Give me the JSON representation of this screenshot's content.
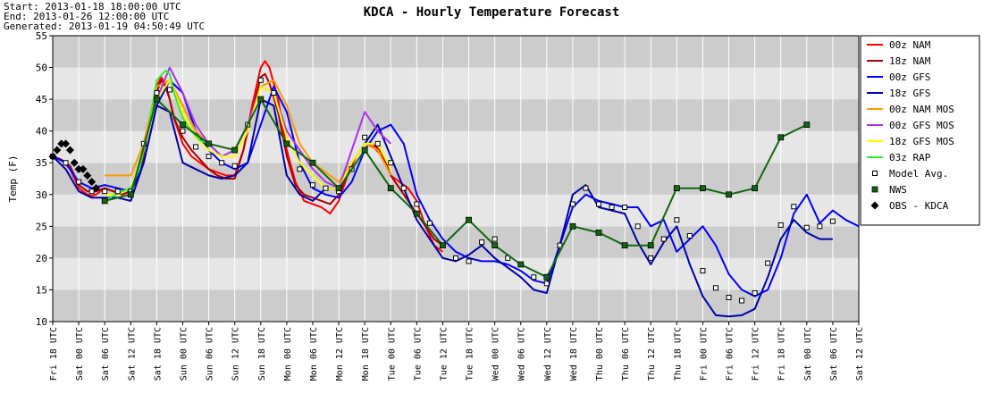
{
  "header": {
    "start_label": "Start: 2013-01-18 18:00:00 UTC",
    "end_label": "End: 2013-01-26 12:00:00 UTC",
    "generated_label": "Generated: 2013-01-19 04:50:49 UTC"
  },
  "colors": {
    "band_dark": "#cccccc",
    "band_light": "#e6e6e6",
    "grid": "#ffffff"
  },
  "chart_data": {
    "type": "line",
    "title": "KDCA - Hourly Temperature Forecast",
    "ylabel": "Temp (F)",
    "xlabel": "",
    "ylim": [
      10,
      55
    ],
    "yticks": [
      10,
      15,
      20,
      25,
      30,
      35,
      40,
      45,
      50,
      55
    ],
    "x_unit": "hours after 2013-01-18 18:00 UTC",
    "xlim": [
      0,
      186
    ],
    "xticks": [
      {
        "x": 0,
        "label": "Fri 18 UTC"
      },
      {
        "x": 6,
        "label": "Sat 00 UTC"
      },
      {
        "x": 12,
        "label": "Sat 06 UTC"
      },
      {
        "x": 18,
        "label": "Sat 12 UTC"
      },
      {
        "x": 24,
        "label": "Sat 18 UTC"
      },
      {
        "x": 30,
        "label": "Sun 00 UTC"
      },
      {
        "x": 36,
        "label": "Sun 06 UTC"
      },
      {
        "x": 42,
        "label": "Sun 12 UTC"
      },
      {
        "x": 48,
        "label": "Sun 18 UTC"
      },
      {
        "x": 54,
        "label": "Mon 00 UTC"
      },
      {
        "x": 60,
        "label": "Mon 06 UTC"
      },
      {
        "x": 66,
        "label": "Mon 12 UTC"
      },
      {
        "x": 72,
        "label": "Mon 18 UTC"
      },
      {
        "x": 78,
        "label": "Tue 00 UTC"
      },
      {
        "x": 84,
        "label": "Tue 06 UTC"
      },
      {
        "x": 90,
        "label": "Tue 12 UTC"
      },
      {
        "x": 96,
        "label": "Tue 18 UTC"
      },
      {
        "x": 102,
        "label": "Wed 00 UTC"
      },
      {
        "x": 108,
        "label": "Wed 06 UTC"
      },
      {
        "x": 114,
        "label": "Wed 12 UTC"
      },
      {
        "x": 120,
        "label": "Wed 18 UTC"
      },
      {
        "x": 126,
        "label": "Thu 00 UTC"
      },
      {
        "x": 132,
        "label": "Thu 06 UTC"
      },
      {
        "x": 138,
        "label": "Thu 12 UTC"
      },
      {
        "x": 144,
        "label": "Thu 18 UTC"
      },
      {
        "x": 150,
        "label": "Fri 00 UTC"
      },
      {
        "x": 156,
        "label": "Fri 06 UTC"
      },
      {
        "x": 162,
        "label": "Fri 12 UTC"
      },
      {
        "x": 168,
        "label": "Fri 18 UTC"
      },
      {
        "x": 174,
        "label": "Sat 00 UTC"
      },
      {
        "x": 180,
        "label": "Sat 06 UTC"
      },
      {
        "x": 186,
        "label": "Sat 12 UTC"
      }
    ],
    "legend_position": "right",
    "series": [
      {
        "name": "00z NAM",
        "color": "#ff0000",
        "kind": "line",
        "x": [
          0,
          2,
          4,
          6,
          8,
          9,
          10,
          12,
          14,
          16,
          18,
          20,
          22,
          24,
          25,
          26,
          27,
          28,
          30,
          32,
          34,
          36,
          38,
          40,
          42,
          44,
          46,
          48,
          49,
          50,
          52,
          54,
          56,
          58,
          60,
          62,
          64,
          66,
          68,
          70,
          72,
          74,
          76,
          78,
          80,
          82,
          84,
          86,
          88,
          90
        ],
        "y": [
          36,
          35.5,
          34,
          31,
          30,
          29.8,
          30,
          31,
          30.5,
          30,
          30.5,
          33,
          40,
          47,
          48.5,
          47.5,
          45,
          42,
          38,
          36,
          35,
          34,
          33.5,
          33,
          33,
          37,
          44,
          50,
          51,
          50,
          45,
          37,
          32,
          29,
          28.5,
          28,
          27,
          29,
          33,
          36,
          38,
          37.5,
          36,
          33,
          32,
          31,
          29,
          25,
          22,
          21
        ]
      },
      {
        "name": "18z NAM",
        "color": "#aa0000",
        "kind": "line",
        "x": [
          0,
          2,
          4,
          6,
          8,
          10,
          12,
          14,
          16,
          18,
          20,
          22,
          24,
          25,
          26,
          27,
          28,
          30,
          32,
          34,
          36,
          38,
          40,
          42,
          44,
          46,
          48,
          49,
          50,
          52,
          54,
          56,
          58,
          60,
          62,
          64,
          66,
          68,
          70,
          72,
          74,
          76,
          78,
          80,
          82,
          84,
          86,
          88,
          90
        ],
        "y": [
          36,
          35.5,
          34.5,
          31.5,
          30.5,
          30.5,
          31,
          30.5,
          30,
          30.5,
          33,
          40,
          46,
          48,
          47,
          45,
          42,
          39,
          37,
          35.5,
          34,
          33,
          32.5,
          32.5,
          37,
          43,
          48.5,
          49,
          47.5,
          43,
          36,
          31.5,
          30,
          29.5,
          29,
          28.5,
          30,
          33,
          36,
          38,
          38,
          36.5,
          33,
          31,
          29,
          27,
          25,
          23,
          22
        ]
      },
      {
        "name": "00z GFS",
        "color": "#0000ff",
        "kind": "line",
        "x": [
          0,
          3,
          6,
          9,
          12,
          15,
          18,
          21,
          24,
          27,
          30,
          33,
          36,
          39,
          42,
          45,
          48,
          51,
          54,
          57,
          60,
          63,
          66,
          69,
          72,
          75,
          78,
          81,
          84,
          87,
          90,
          93,
          96,
          99,
          102,
          105,
          108,
          111,
          114,
          117,
          120,
          123,
          126,
          129,
          132,
          135,
          138,
          141,
          144,
          147,
          150,
          153,
          156,
          159,
          162,
          165,
          168,
          171,
          174,
          177,
          180,
          183,
          186
        ],
        "y": [
          36,
          35,
          32,
          31,
          31.5,
          31,
          30.5,
          35,
          44,
          48,
          46,
          40,
          37,
          35,
          34,
          35,
          41,
          47,
          43,
          35,
          31,
          30,
          29.5,
          32,
          37,
          40,
          41,
          38,
          30,
          26,
          23,
          21,
          20,
          19.5,
          19.5,
          19,
          18,
          16.5,
          16,
          22,
          28,
          30,
          29,
          28.5,
          28,
          28,
          25,
          26,
          21,
          23,
          25,
          22,
          17.5,
          15,
          14,
          15,
          20,
          27,
          30,
          25.5,
          27.5,
          26,
          25
        ]
      },
      {
        "name": "18z GFS",
        "color": "#0000aa",
        "kind": "line",
        "x": [
          0,
          3,
          6,
          9,
          12,
          15,
          18,
          21,
          24,
          27,
          30,
          33,
          36,
          39,
          42,
          45,
          48,
          51,
          54,
          57,
          60,
          63,
          66,
          69,
          72,
          75,
          78,
          81,
          84,
          87,
          90,
          93,
          96,
          99,
          102,
          105,
          108,
          111,
          114,
          117,
          120,
          123,
          126,
          129,
          132,
          135,
          138,
          141,
          144,
          147,
          150,
          153,
          156,
          159,
          162,
          165,
          168,
          171,
          174,
          177,
          180
        ],
        "y": [
          36,
          34,
          30.5,
          29.5,
          29.5,
          29.5,
          29,
          35,
          44,
          43,
          35,
          34,
          33,
          32.5,
          33,
          35,
          45,
          44,
          33,
          30,
          29,
          31,
          31,
          35,
          38,
          41,
          36,
          31,
          26,
          23,
          20,
          19.5,
          20.5,
          22,
          20,
          18.5,
          17,
          15,
          14.5,
          22,
          30,
          31.5,
          28,
          27.5,
          27,
          22.5,
          19,
          22.5,
          25,
          19,
          14,
          11,
          10.8,
          11,
          12,
          17,
          23,
          26,
          24,
          23,
          23
        ]
      },
      {
        "name": "00z NAM MOS",
        "color": "#ff9900",
        "kind": "line",
        "x": [
          12,
          15,
          18,
          21,
          24,
          27,
          30,
          33,
          36,
          39,
          42,
          45,
          48,
          51,
          54,
          57,
          60,
          63,
          66,
          69,
          72,
          75,
          78
        ],
        "y": [
          33,
          33,
          33,
          38,
          47,
          48,
          44,
          40,
          38,
          36,
          37,
          41,
          47,
          48,
          44,
          38,
          35,
          33.5,
          32,
          35,
          38,
          37,
          33
        ]
      },
      {
        "name": "00z GFS MOS",
        "color": "#aa33ee",
        "kind": "line",
        "x": [
          24,
          27,
          30,
          33,
          36,
          39,
          42,
          45,
          48,
          51,
          54,
          57,
          60,
          63,
          66,
          69,
          72,
          75,
          78
        ],
        "y": [
          45,
          50,
          46,
          41,
          38,
          36,
          37,
          41,
          47,
          46,
          40,
          37,
          34,
          32,
          31,
          37,
          43,
          40,
          38
        ]
      },
      {
        "name": "18z GFS MOS",
        "color": "#ffff00",
        "kind": "line",
        "x": [
          12,
          15,
          18,
          21,
          24,
          27,
          30,
          33,
          36,
          39,
          42,
          45,
          48,
          51,
          54,
          57,
          60,
          63,
          66,
          69,
          72,
          75,
          78
        ],
        "y": [
          30,
          30,
          31,
          37,
          45,
          48,
          43,
          39,
          37,
          36,
          36,
          40,
          47,
          46,
          39,
          35,
          33,
          31,
          31,
          35,
          38,
          38,
          34
        ]
      },
      {
        "name": "03z RAP",
        "color": "#33ee33",
        "kind": "line",
        "x": [
          12,
          14,
          16,
          18,
          20,
          22,
          24,
          26,
          27,
          28,
          30,
          32,
          34,
          36
        ],
        "y": [
          29,
          29.8,
          30.5,
          31,
          34,
          40,
          48,
          49.5,
          49,
          46,
          42,
          40,
          38.5,
          38
        ]
      },
      {
        "name": "Model Avg.",
        "color": "#000000",
        "kind": "square",
        "x": [
          0,
          3,
          6,
          9,
          12,
          15,
          18,
          21,
          24,
          27,
          30,
          33,
          36,
          39,
          42,
          45,
          48,
          51,
          54,
          57,
          60,
          63,
          66,
          69,
          72,
          75,
          78,
          81,
          84,
          87,
          90,
          93,
          96,
          99,
          102,
          105,
          108,
          111,
          114,
          117,
          120,
          123,
          126,
          129,
          132,
          135,
          138,
          141,
          144,
          147,
          150,
          153,
          156,
          159,
          162,
          165,
          168,
          171,
          174,
          177,
          180
        ],
        "y": [
          36,
          35,
          32,
          30.5,
          30.5,
          30.5,
          30.5,
          38,
          46,
          46.5,
          40,
          37.5,
          36,
          35,
          34.5,
          41,
          48,
          46,
          38,
          34,
          31.5,
          31,
          30.5,
          34,
          39,
          38,
          35,
          31,
          28.5,
          25.5,
          22,
          20,
          19.5,
          22.5,
          23,
          20,
          19,
          17,
          16,
          22,
          28.5,
          31,
          28.5,
          28,
          28,
          25,
          20,
          23,
          26,
          23.5,
          18,
          15.3,
          13.8,
          13.3,
          14.5,
          19.2,
          25.2,
          28.1,
          24.8,
          25,
          25.8
        ]
      },
      {
        "name": "NWS",
        "color": "#116611",
        "kind": "line-square",
        "x": [
          12,
          18,
          24,
          30,
          36,
          42,
          48,
          54,
          60,
          66,
          72,
          78,
          84,
          90,
          96,
          102,
          108,
          114,
          120,
          126,
          132,
          138,
          144,
          150,
          156,
          162,
          168,
          174
        ],
        "y": [
          29,
          30,
          45,
          41,
          38,
          37,
          45,
          38,
          35,
          31,
          37,
          31,
          27,
          22,
          26,
          22,
          19,
          17,
          25,
          24,
          22,
          22,
          31,
          31,
          30,
          31,
          39,
          41
        ]
      },
      {
        "name": "OBS - KDCA",
        "color": "#000000",
        "kind": "diamond",
        "x": [
          0,
          1,
          2,
          3,
          4,
          5,
          6,
          7,
          8,
          9,
          10
        ],
        "y": [
          36,
          37,
          38,
          38,
          37,
          35,
          34,
          34,
          33,
          32,
          31
        ]
      }
    ]
  }
}
